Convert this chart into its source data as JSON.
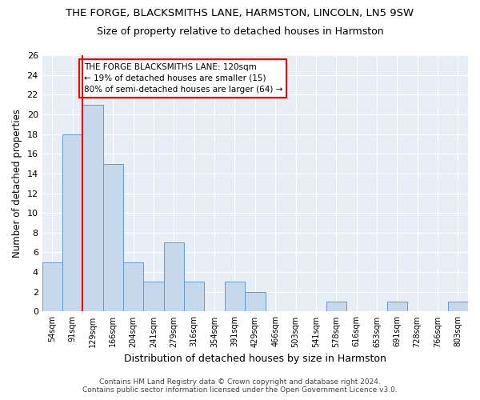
{
  "title": "THE FORGE, BLACKSMITHS LANE, HARMSTON, LINCOLN, LN5 9SW",
  "subtitle": "Size of property relative to detached houses in Harmston",
  "xlabel": "Distribution of detached houses by size in Harmston",
  "ylabel": "Number of detached properties",
  "bar_color": "#c5d8ec",
  "bar_edge_color": "#6699cc",
  "background_color": "#e8eef5",
  "categories": [
    "54sqm",
    "91sqm",
    "129sqm",
    "166sqm",
    "204sqm",
    "241sqm",
    "279sqm",
    "316sqm",
    "354sqm",
    "391sqm",
    "429sqm",
    "466sqm",
    "503sqm",
    "541sqm",
    "578sqm",
    "616sqm",
    "653sqm",
    "691sqm",
    "728sqm",
    "766sqm",
    "803sqm"
  ],
  "values": [
    5,
    18,
    21,
    15,
    5,
    3,
    7,
    3,
    0,
    3,
    2,
    0,
    0,
    0,
    1,
    0,
    0,
    1,
    0,
    0,
    1
  ],
  "ylim": [
    0,
    26
  ],
  "yticks": [
    0,
    2,
    4,
    6,
    8,
    10,
    12,
    14,
    16,
    18,
    20,
    22,
    24,
    26
  ],
  "redline_x": 1.5,
  "annotation_lines": [
    "THE FORGE BLACKSMITHS LANE: 120sqm",
    "← 19% of detached houses are smaller (15)",
    "80% of semi-detached houses are larger (64) →"
  ],
  "footer1": "Contains HM Land Registry data © Crown copyright and database right 2024.",
  "footer2": "Contains public sector information licensed under the Open Government Licence v3.0."
}
